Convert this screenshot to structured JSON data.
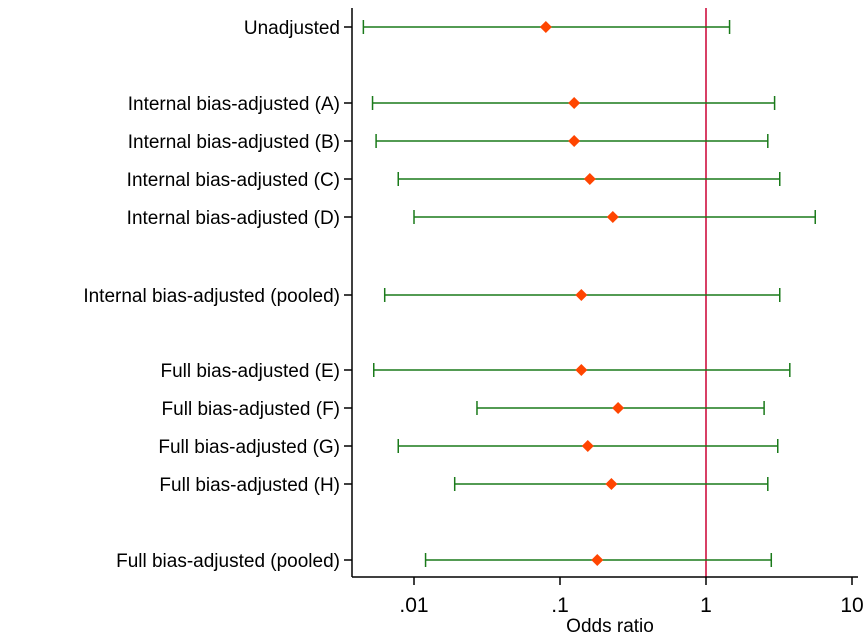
{
  "chart_data": {
    "type": "forest",
    "xlabel": "Odds ratio",
    "x_scale": "log",
    "xlim": [
      0.0035,
      10
    ],
    "x_ticks": [
      0.01,
      0.1,
      1,
      10
    ],
    "x_tick_labels": [
      ".01",
      ".1",
      "1",
      "10"
    ],
    "reference_line": 1,
    "rows": [
      {
        "label": "Unadjusted",
        "estimate": 0.08,
        "lower": 0.0045,
        "upper": 1.45
      },
      {
        "label": "Internal bias-adjusted (A)",
        "estimate": 0.125,
        "lower": 0.0052,
        "upper": 2.95
      },
      {
        "label": "Internal bias-adjusted (B)",
        "estimate": 0.125,
        "lower": 0.0055,
        "upper": 2.65
      },
      {
        "label": "Internal bias-adjusted (C)",
        "estimate": 0.16,
        "lower": 0.0078,
        "upper": 3.2
      },
      {
        "label": "Internal bias-adjusted (D)",
        "estimate": 0.23,
        "lower": 0.01,
        "upper": 5.6
      },
      {
        "label": "Internal bias-adjusted (pooled)",
        "estimate": 0.14,
        "lower": 0.0063,
        "upper": 3.2
      },
      {
        "label": "Full bias-adjusted (E)",
        "estimate": 0.14,
        "lower": 0.0053,
        "upper": 3.75
      },
      {
        "label": "Full bias-adjusted (F)",
        "estimate": 0.25,
        "lower": 0.027,
        "upper": 2.5
      },
      {
        "label": "Full bias-adjusted (G)",
        "estimate": 0.155,
        "lower": 0.0078,
        "upper": 3.1
      },
      {
        "label": "Full bias-adjusted (H)",
        "estimate": 0.225,
        "lower": 0.019,
        "upper": 2.65
      },
      {
        "label": "Full bias-adjusted (pooled)",
        "estimate": 0.18,
        "lower": 0.012,
        "upper": 2.8
      }
    ],
    "colors": {
      "point": "#ff4500",
      "ci": "#1a7a1a",
      "reference_line": "#cc0033",
      "axis": "#000000"
    }
  }
}
